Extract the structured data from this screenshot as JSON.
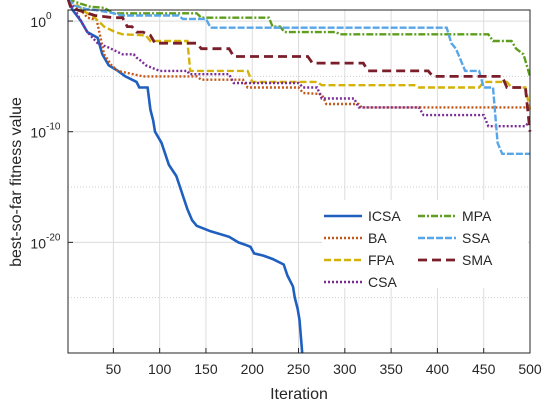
{
  "chart_data": {
    "type": "line",
    "title": "",
    "xlabel": "Iteration",
    "ylabel": "best-so-far fitness value",
    "xlim": [
      1,
      500
    ],
    "ylim_log10": [
      -30,
      1
    ],
    "y_scale": "log",
    "grid": true,
    "x_ticks": [
      50,
      100,
      150,
      200,
      250,
      300,
      350,
      400,
      450,
      500
    ],
    "y_tick_exponents": [
      0,
      -10,
      -20
    ],
    "y_tick_labels": [
      "0",
      "-10",
      "-20"
    ],
    "legend_position": "bottom-right",
    "legend_columns": [
      [
        "ICSA",
        "BA",
        "FPA",
        "CSA"
      ],
      [
        "MPA",
        "SSA",
        "SMA"
      ]
    ],
    "series": [
      {
        "name": "ICSA",
        "color": "#1f5fbf",
        "dash": "solid",
        "width": 2.6,
        "points": [
          [
            1,
            2
          ],
          [
            6,
            1
          ],
          [
            15,
            0
          ],
          [
            22,
            -1
          ],
          [
            33,
            -1.5
          ],
          [
            38,
            -3
          ],
          [
            45,
            -4
          ],
          [
            55,
            -4.5
          ],
          [
            63,
            -5
          ],
          [
            75,
            -5.5
          ],
          [
            78,
            -6
          ],
          [
            87,
            -6
          ],
          [
            90,
            -8
          ],
          [
            93,
            -9
          ],
          [
            95,
            -10
          ],
          [
            102,
            -11
          ],
          [
            110,
            -13
          ],
          [
            118,
            -14
          ],
          [
            122,
            -15
          ],
          [
            126,
            -16
          ],
          [
            130,
            -17
          ],
          [
            135,
            -18
          ],
          [
            140,
            -18.5
          ],
          [
            155,
            -19
          ],
          [
            175,
            -19.5
          ],
          [
            185,
            -20
          ],
          [
            192,
            -20.2
          ],
          [
            198,
            -20.4
          ],
          [
            202,
            -21
          ],
          [
            212,
            -21.2
          ],
          [
            222,
            -21.5
          ],
          [
            234,
            -22
          ],
          [
            238,
            -23
          ],
          [
            244,
            -24
          ],
          [
            246,
            -25
          ],
          [
            249,
            -26
          ],
          [
            251,
            -27
          ],
          [
            252,
            -28
          ],
          [
            253,
            -29
          ],
          [
            254,
            -30
          ]
        ]
      },
      {
        "name": "BA",
        "color": "#c2581a",
        "dash": "2,2",
        "width": 2.4,
        "points": [
          [
            1,
            2
          ],
          [
            8,
            1.3
          ],
          [
            15,
            1
          ],
          [
            22,
            0.3
          ],
          [
            32,
            0.1
          ],
          [
            40,
            -3
          ],
          [
            48,
            -4
          ],
          [
            55,
            -4.5
          ],
          [
            82,
            -5
          ],
          [
            140,
            -5
          ],
          [
            145,
            -5.3
          ],
          [
            190,
            -5.3
          ],
          [
            195,
            -6
          ],
          [
            250,
            -6
          ],
          [
            255,
            -6.5
          ],
          [
            275,
            -6.6
          ],
          [
            280,
            -7.5
          ],
          [
            315,
            -7.5
          ],
          [
            318,
            -7.8
          ],
          [
            500,
            -7.8
          ]
        ]
      },
      {
        "name": "FPA",
        "color": "#d4b20a",
        "dash": "7,3",
        "width": 2.4,
        "points": [
          [
            1,
            2
          ],
          [
            12,
            1.4
          ],
          [
            20,
            0.8
          ],
          [
            30,
            0.3
          ],
          [
            40,
            -0.5
          ],
          [
            52,
            -1
          ],
          [
            60,
            -1.2
          ],
          [
            85,
            -1.3
          ],
          [
            90,
            -1.8
          ],
          [
            130,
            -1.8
          ],
          [
            133,
            -4.5
          ],
          [
            195,
            -4.5
          ],
          [
            200,
            -5.5
          ],
          [
            270,
            -5.5
          ],
          [
            275,
            -5.8
          ],
          [
            375,
            -5.8
          ],
          [
            380,
            -6
          ],
          [
            445,
            -6
          ],
          [
            450,
            -5.5
          ],
          [
            475,
            -5.5
          ],
          [
            480,
            -6
          ],
          [
            495,
            -6
          ],
          [
            500,
            -8
          ]
        ]
      },
      {
        "name": "CSA",
        "color": "#7b2d96",
        "dash": "2,2",
        "width": 2.4,
        "points": [
          [
            1,
            2
          ],
          [
            5,
            1.5
          ],
          [
            10,
            0.8
          ],
          [
            17,
            -0.3
          ],
          [
            22,
            -1
          ],
          [
            33,
            -2
          ],
          [
            45,
            -2.4
          ],
          [
            60,
            -3
          ],
          [
            72,
            -3
          ],
          [
            75,
            -3.3
          ],
          [
            80,
            -3.6
          ],
          [
            85,
            -4
          ],
          [
            100,
            -4.5
          ],
          [
            130,
            -4.5
          ],
          [
            132,
            -4.8
          ],
          [
            175,
            -4.8
          ],
          [
            180,
            -5.6
          ],
          [
            250,
            -5.6
          ],
          [
            255,
            -6
          ],
          [
            270,
            -6
          ],
          [
            275,
            -7
          ],
          [
            310,
            -7
          ],
          [
            315,
            -7.8
          ],
          [
            380,
            -7.8
          ],
          [
            385,
            -8.5
          ],
          [
            450,
            -8.5
          ],
          [
            455,
            -9.5
          ],
          [
            495,
            -9.5
          ],
          [
            500,
            -9
          ]
        ]
      },
      {
        "name": "MPA",
        "color": "#5e9e1e",
        "dash": "7,2,2,2",
        "width": 2.4,
        "points": [
          [
            1,
            2
          ],
          [
            10,
            1.7
          ],
          [
            25,
            1.3
          ],
          [
            40,
            1.2
          ],
          [
            50,
            0.7
          ],
          [
            140,
            0.7
          ],
          [
            145,
            0.3
          ],
          [
            218,
            0.3
          ],
          [
            222,
            -0.5
          ],
          [
            230,
            -0.5
          ],
          [
            235,
            -1
          ],
          [
            290,
            -1
          ],
          [
            295,
            -1.2
          ],
          [
            455,
            -1.2
          ],
          [
            460,
            -1.8
          ],
          [
            480,
            -1.8
          ],
          [
            485,
            -2.5
          ],
          [
            493,
            -3
          ],
          [
            500,
            -5
          ]
        ]
      },
      {
        "name": "SSA",
        "color": "#57a6e8",
        "dash": "7,2",
        "width": 2.4,
        "points": [
          [
            1,
            2
          ],
          [
            8,
            1.4
          ],
          [
            20,
            1.1
          ],
          [
            30,
            1
          ],
          [
            45,
            0.8
          ],
          [
            60,
            0.5
          ],
          [
            120,
            0.5
          ],
          [
            125,
            0.2
          ],
          [
            150,
            0.2
          ],
          [
            155,
            -0.6
          ],
          [
            410,
            -0.6
          ],
          [
            415,
            -2
          ],
          [
            420,
            -2.5
          ],
          [
            425,
            -3.5
          ],
          [
            430,
            -4.5
          ],
          [
            445,
            -4.5
          ],
          [
            450,
            -6
          ],
          [
            460,
            -6
          ],
          [
            465,
            -11
          ],
          [
            470,
            -12
          ],
          [
            500,
            -12
          ]
        ]
      },
      {
        "name": "SMA",
        "color": "#7a1e2a",
        "dash": "9,5",
        "width": 2.8,
        "points": [
          [
            1,
            2
          ],
          [
            4,
            1.2
          ],
          [
            15,
            0.9
          ],
          [
            30,
            0.5
          ],
          [
            50,
            0.3
          ],
          [
            60,
            0.3
          ],
          [
            65,
            -0.5
          ],
          [
            70,
            -0.5
          ],
          [
            75,
            -1
          ],
          [
            82,
            -1
          ],
          [
            90,
            -1.3
          ],
          [
            95,
            -2
          ],
          [
            140,
            -2
          ],
          [
            145,
            -2.5
          ],
          [
            175,
            -2.5
          ],
          [
            180,
            -3.2
          ],
          [
            260,
            -3.2
          ],
          [
            265,
            -3.8
          ],
          [
            320,
            -3.8
          ],
          [
            325,
            -4.5
          ],
          [
            390,
            -4.5
          ],
          [
            395,
            -5
          ],
          [
            470,
            -5
          ],
          [
            475,
            -6
          ],
          [
            495,
            -6
          ],
          [
            500,
            -10
          ]
        ]
      }
    ]
  }
}
